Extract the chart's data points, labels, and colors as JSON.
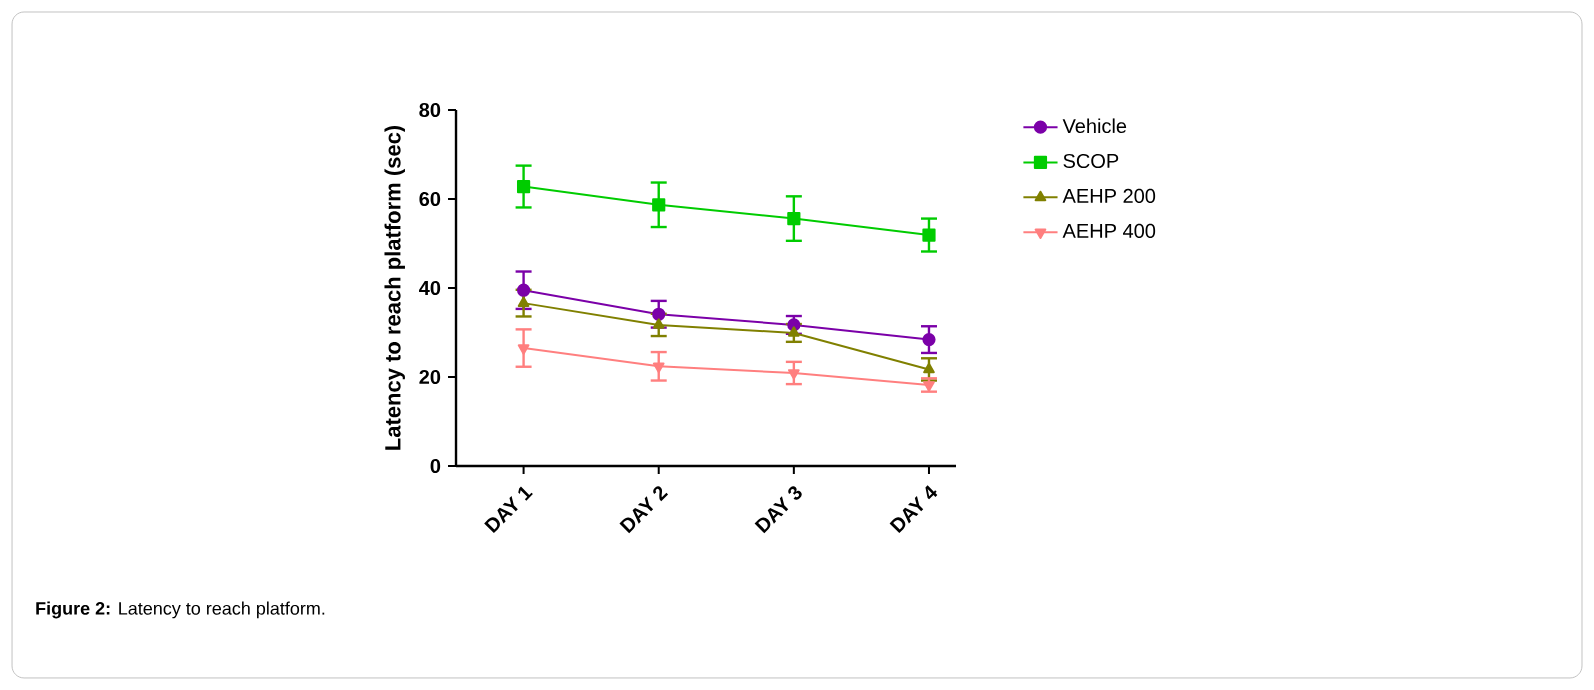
{
  "chart_data": {
    "type": "line",
    "ylabel": "Latency to reach platform (sec)",
    "categories": [
      "DAY 1",
      "DAY 2",
      "DAY 3",
      "DAY 4"
    ],
    "series": [
      {
        "name": "Vehicle",
        "color": "#7b00a8",
        "marker": "circle",
        "values": [
          39.5,
          34.1,
          31.7,
          28.4
        ],
        "errors": [
          4.2,
          3,
          2,
          3
        ]
      },
      {
        "name": "SCOP",
        "color": "#00cc00",
        "marker": "square",
        "values": [
          62.8,
          58.7,
          55.6,
          51.9
        ],
        "errors": [
          4.7,
          5,
          5,
          3.7
        ]
      },
      {
        "name": "AEHP 200",
        "color": "#808000",
        "marker": "triangle",
        "values": [
          36.6,
          31.7,
          29.9,
          21.7
        ],
        "errors": [
          3,
          2.5,
          2,
          2.5
        ]
      },
      {
        "name": "AEHP 400",
        "color": "#ff7f7f",
        "marker": "triangle",
        "values": [
          26.5,
          22.4,
          20.9,
          18.2
        ],
        "errors": [
          4.2,
          3.2,
          2.5,
          1.5
        ]
      }
    ],
    "ylim": [
      0,
      80
    ],
    "yticks": [
      0,
      20,
      40,
      60,
      80
    ],
    "grid": false,
    "legend": "right",
    "annotations": [
      "**Figure 2:** Latency to reach platform."
    ]
  }
}
